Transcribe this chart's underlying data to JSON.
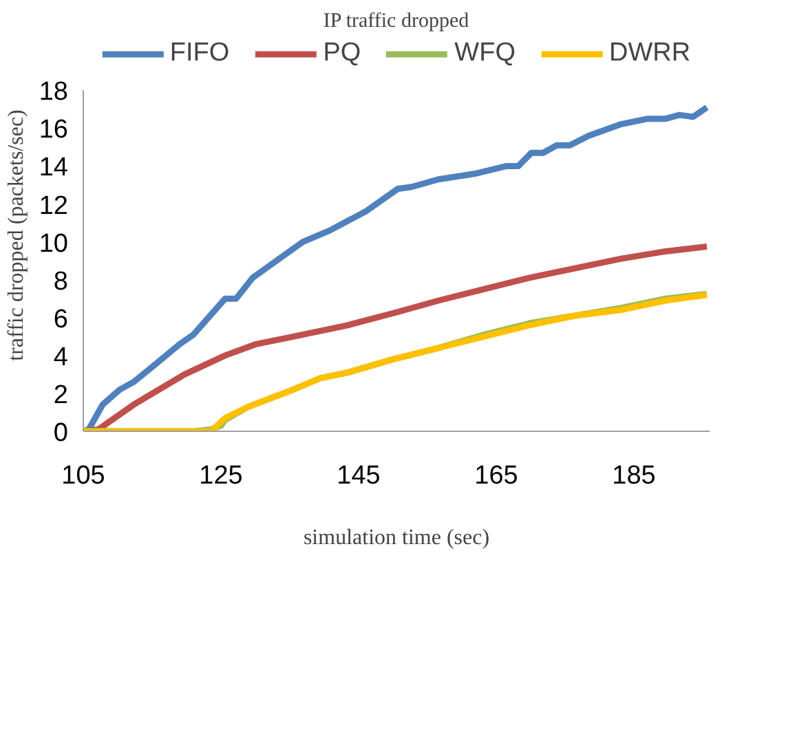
{
  "chart_data": {
    "type": "line",
    "title": "IP traffic dropped",
    "xlabel": "simulation time (sec)",
    "ylabel": "traffic dropped (packets/sec)",
    "xlim": [
      105,
      196
    ],
    "xticks": [
      105,
      125,
      145,
      165,
      185
    ],
    "ylim": [
      0,
      18
    ],
    "yticks": [
      0,
      2,
      4,
      6,
      8,
      10,
      12,
      14,
      16,
      18
    ],
    "grid": false,
    "legend": "top",
    "series": [
      {
        "name": "FIFO",
        "color": "#4f81bd",
        "x": [
          105,
          105.8,
          107.8,
          110.3,
          112.3,
          115.7,
          119,
          121,
          125.6,
          127.2,
          129.6,
          136.9,
          140.8,
          143.4,
          146,
          150.7,
          152.7,
          156.6,
          161.9,
          166.5,
          168.2,
          170.1,
          171.8,
          173.8,
          175.7,
          178.4,
          183,
          187,
          189.6,
          191.6,
          193.6,
          195.6
        ],
        "values": [
          0,
          0.1,
          1.4,
          2.2,
          2.6,
          3.6,
          4.6,
          5.1,
          7.0,
          7.0,
          8.1,
          10.0,
          10.6,
          11.1,
          11.6,
          12.8,
          12.9,
          13.3,
          13.6,
          14.0,
          14.0,
          14.7,
          14.7,
          15.1,
          15.1,
          15.6,
          16.2,
          16.5,
          16.5,
          16.7,
          16.6,
          17.1
        ]
      },
      {
        "name": "PQ",
        "color": "#c0504d",
        "x": [
          105,
          107.2,
          112.3,
          119.7,
          125.6,
          130.1,
          135.5,
          143.4,
          150.7,
          156.6,
          163.2,
          169.8,
          176.4,
          183,
          189.6,
          195.6
        ],
        "values": [
          0,
          0.1,
          1.4,
          3.0,
          4.0,
          4.6,
          5.0,
          5.6,
          6.3,
          6.9,
          7.5,
          8.1,
          8.6,
          9.1,
          9.5,
          9.75
        ]
      },
      {
        "name": "WFQ",
        "color": "#9bbb59",
        "x": [
          105,
          121,
          123.6,
          125,
          125.6,
          129,
          135.5,
          139.4,
          143.4,
          150,
          156.6,
          163.2,
          169.8,
          176.4,
          183,
          189.6,
          195.6
        ],
        "values": [
          0,
          0,
          0.1,
          0.3,
          0.6,
          1.3,
          2.2,
          2.8,
          3.1,
          3.8,
          4.4,
          5.1,
          5.7,
          6.1,
          6.5,
          7.0,
          7.25
        ]
      },
      {
        "name": "DWRR",
        "color": "#ffc000",
        "x": [
          105,
          123.6,
          125.6,
          129,
          135.5,
          139.4,
          143.4,
          150,
          156.6,
          163.2,
          169.8,
          176.4,
          183,
          189.6,
          195.6
        ],
        "values": [
          0,
          0,
          0.7,
          1.3,
          2.2,
          2.8,
          3.1,
          3.8,
          4.4,
          5.0,
          5.6,
          6.1,
          6.4,
          6.9,
          7.2
        ]
      }
    ]
  }
}
